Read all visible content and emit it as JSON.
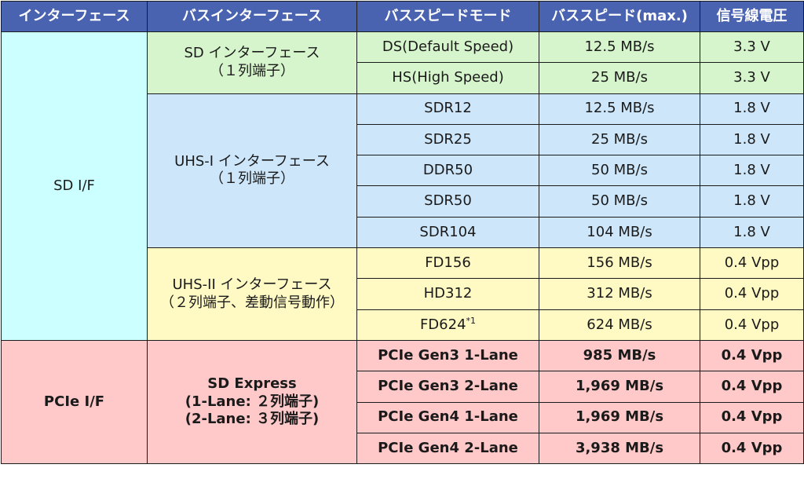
{
  "headers": [
    "インターフェース",
    "バスインターフェース",
    "バススピードモード",
    "バススピード(max.)",
    "信号線電圧"
  ],
  "groups": {
    "sd_if": {
      "label": "SD I/F"
    },
    "pcie_if": {
      "label": "PCIe I/F"
    },
    "sd_bus": {
      "line1": "SD インターフェース",
      "line2": "（１列端子）"
    },
    "uhs1_bus": {
      "line1": "UHS-I インターフェース",
      "line2": "（１列端子）"
    },
    "uhs2_bus": {
      "line1": "UHS-II インターフェース",
      "line2": "（２列端子、差動信号動作）"
    },
    "express_bus": {
      "line1": "SD Express",
      "line2": "(1-Lane: ２列端子)",
      "line3": "(2-Lane: ３列端子)"
    }
  },
  "rows": [
    {
      "mode": "DS(Default Speed)",
      "speed": "12.5 MB/s",
      "voltage": "3.3 V"
    },
    {
      "mode": "HS(High Speed)",
      "speed": "25 MB/s",
      "voltage": "3.3 V"
    },
    {
      "mode": "SDR12",
      "speed": "12.5 MB/s",
      "voltage": "1.8 V"
    },
    {
      "mode": "SDR25",
      "speed": "25 MB/s",
      "voltage": "1.8 V"
    },
    {
      "mode": "DDR50",
      "speed": "50 MB/s",
      "voltage": "1.8 V"
    },
    {
      "mode": "SDR50",
      "speed": "50 MB/s",
      "voltage": "1.8 V"
    },
    {
      "mode": "SDR104",
      "speed": "104 MB/s",
      "voltage": "1.8 V"
    },
    {
      "mode": "FD156",
      "speed": "156 MB/s",
      "voltage": "0.4 Vpp"
    },
    {
      "mode": "HD312",
      "speed": "312 MB/s",
      "voltage": "0.4 Vpp"
    },
    {
      "mode": "FD624",
      "footnote": "*1",
      "speed": "624 MB/s",
      "voltage": "0.4 Vpp"
    },
    {
      "mode": "PCIe Gen3 1-Lane",
      "speed": "985 MB/s",
      "voltage": "0.4 Vpp"
    },
    {
      "mode": "PCIe Gen3 2-Lane",
      "speed": "1,969 MB/s",
      "voltage": "0.4 Vpp"
    },
    {
      "mode": "PCIe Gen4 1-Lane",
      "speed": "1,969 MB/s",
      "voltage": "0.4 Vpp"
    },
    {
      "mode": "PCIe Gen4 2-Lane",
      "speed": "3,938 MB/s",
      "voltage": "0.4 Vpp"
    }
  ],
  "colors": {
    "header": "#4a63b0",
    "sd_if": "#ccffff",
    "sd": "#d6f5cc",
    "uhs1": "#cde6fa",
    "uhs2": "#fff9c4",
    "pcie": "#ffc9c9"
  }
}
